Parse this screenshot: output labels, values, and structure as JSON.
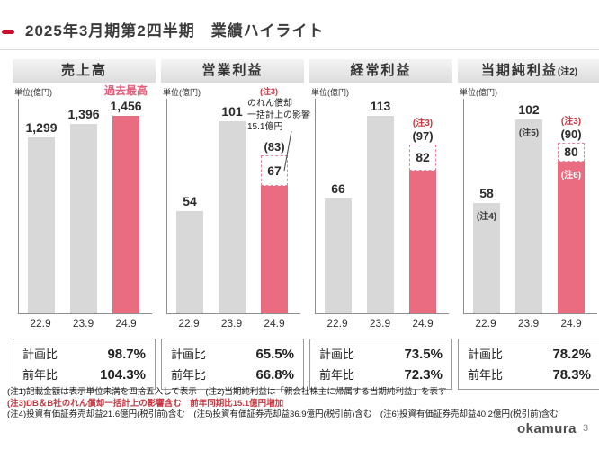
{
  "title": "2025年3月期第2四半期　業績ハイライト",
  "colors": {
    "accent_red": "#c8102e",
    "bar_pink": "#e96c80",
    "bar_gray": "#d8d8d8",
    "record_pink": "#e55e79",
    "note_red": "#c9353f"
  },
  "chart_data": [
    {
      "type": "bar",
      "title": "売上高",
      "unit": "単位(億円)",
      "categories": [
        "22.9",
        "23.9",
        "24.9"
      ],
      "values": [
        1299,
        1396,
        1456
      ],
      "value_labels": [
        "1,299",
        "1,396",
        "1,456"
      ],
      "ymax": 1580,
      "record_label": "過去最高",
      "plan_label": "計画比",
      "plan_value": "98.7%",
      "yoy_label": "前年比",
      "yoy_value": "104.3%"
    },
    {
      "type": "bar",
      "title": "営業利益",
      "unit": "単位(億円)",
      "categories": [
        "22.9",
        "23.9",
        "24.9"
      ],
      "values": [
        54,
        101,
        67
      ],
      "value_labels": [
        "54",
        "101",
        "67"
      ],
      "ymax": 113,
      "dashed_value": 83,
      "dashed_label": "(83)",
      "dashed_delta": 16,
      "annotation_note": "(注3)",
      "annotation_lines": [
        "のれん償却",
        "一括計上の影響",
        "15.1億円"
      ],
      "plan_label": "計画比",
      "plan_value": "65.5%",
      "yoy_label": "前年比",
      "yoy_value": "66.8%"
    },
    {
      "type": "bar",
      "title": "経常利益",
      "unit": "単位(億円)",
      "categories": [
        "22.9",
        "23.9",
        "24.9"
      ],
      "values": [
        66,
        113,
        82
      ],
      "value_labels": [
        "66",
        "113",
        "82"
      ],
      "ymax": 123,
      "dashed_value": 97,
      "dashed_label": "(97)",
      "dashed_delta": 15,
      "note3_label": "(注3)",
      "plan_label": "計画比",
      "plan_value": "73.5%",
      "yoy_label": "前年比",
      "yoy_value": "72.3%"
    },
    {
      "type": "bar",
      "title": "当期純利益",
      "title_note": "(注2)",
      "unit": "単位(億円)",
      "categories": [
        "22.9",
        "23.9",
        "24.9"
      ],
      "values": [
        58,
        102,
        80
      ],
      "value_labels": [
        "58",
        "102",
        "80"
      ],
      "bar_notes": [
        "(注4)",
        "(注5)",
        "(注6)"
      ],
      "ymax": 113,
      "dashed_value": 90,
      "dashed_label": "(90)",
      "dashed_delta": 10,
      "note3_label": "(注3)",
      "plan_label": "計画比",
      "plan_value": "78.2%",
      "yoy_label": "前年比",
      "yoy_value": "78.3%"
    }
  ],
  "notes": {
    "line1": "(注1)記載金額は表示単位未満を四捨五入して表示　(注2)当期純利益は「親会社株主に帰属する当期純利益」を表す",
    "line2": "(注3)DB＆B社のれん償却一括計上の影響含む　前年同期比15.1億円増加",
    "line3": "(注4)投資有価証券売却益21.6億円(税引前)含む　(注5)投資有価証券売却益36.9億円(税引前)含む　(注6)投資有価証券売却益40.2億円(税引前)含む"
  },
  "footer": {
    "logo": "okamura",
    "page": "3"
  }
}
